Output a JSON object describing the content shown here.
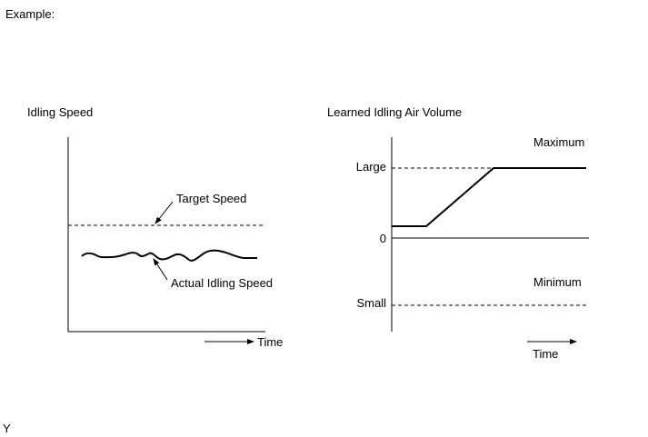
{
  "header": {
    "label": "Example:"
  },
  "footer": {
    "code": "Y"
  },
  "left_graph": {
    "title": "Idling Speed",
    "target_label": "Target Speed",
    "actual_label": "Actual Idling Speed",
    "time_label": "Time"
  },
  "right_graph": {
    "title": "Learned Idling Air Volume",
    "maximum_label": "Maximum",
    "minimum_label": "Minimum",
    "large_label": "Large",
    "zero_label": "0",
    "small_label": "Small",
    "time_label": "Time"
  }
}
